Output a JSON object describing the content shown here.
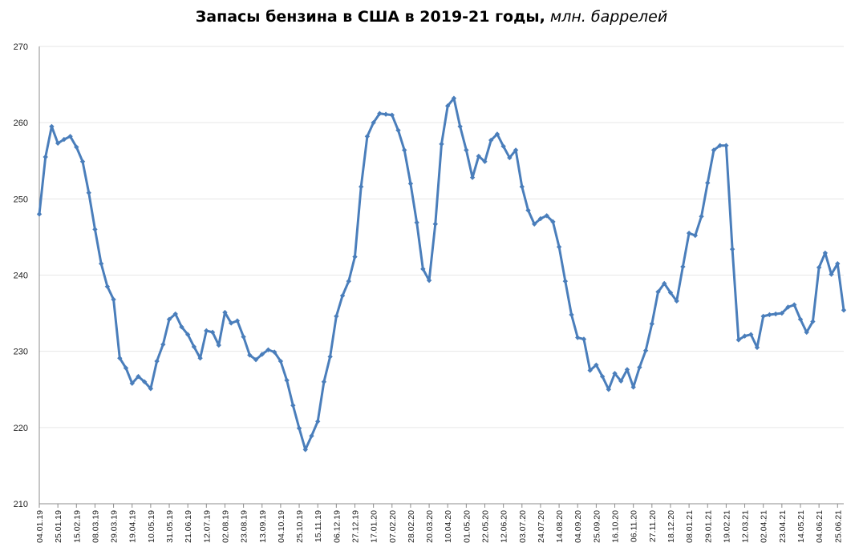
{
  "chart_data": {
    "type": "line",
    "title": "Запасы бензина в США в 2019-21 годы,",
    "title_unit": "млн. баррелей",
    "xlabel": "",
    "ylabel": "",
    "ylim": [
      210,
      270
    ],
    "yticks": [
      210,
      220,
      230,
      240,
      250,
      260,
      270
    ],
    "grid": true,
    "legend": "none",
    "line_color": "#4a7ebb",
    "x_tick_labels": [
      "04.01.19",
      "25.01.19",
      "15.02.19",
      "08.03.19",
      "29.03.19",
      "19.04.19",
      "10.05.19",
      "31.05.19",
      "21.06.19",
      "12.07.19",
      "02.08.19",
      "23.08.19",
      "13.09.19",
      "04.10.19",
      "25.10.19",
      "15.11.19",
      "06.12.19",
      "27.12.19",
      "17.01.20",
      "07.02.20",
      "28.02.20",
      "20.03.20",
      "10.04.20",
      "01.05.20",
      "22.05.20",
      "12.06.20",
      "03.07.20",
      "24.07.20",
      "14.08.20",
      "04.09.20",
      "25.09.20",
      "16.10.20",
      "06.11.20",
      "27.11.20",
      "18.12.20",
      "08.01.21",
      "29.01.21",
      "19.02.21",
      "12.03.21",
      "02.04.21",
      "23.04.21",
      "14.05.21",
      "04.06.21",
      "25.06.21"
    ],
    "series": [
      {
        "values": [
          248.0,
          255.5,
          259.5,
          257.3,
          257.8,
          258.2,
          256.8,
          254.9,
          250.8,
          246.0,
          241.5,
          238.5,
          236.8,
          229.1,
          227.8,
          225.8,
          226.7,
          226.0,
          225.1,
          228.7,
          230.9,
          234.2,
          234.9,
          233.2,
          232.2,
          230.6,
          229.1,
          232.7,
          232.5,
          230.8,
          235.1,
          233.7,
          234.0,
          231.9,
          229.5,
          228.9,
          229.6,
          230.2,
          229.9,
          228.7,
          226.2,
          222.9,
          219.9,
          217.1,
          218.9,
          220.8,
          226.0,
          229.3,
          234.6,
          237.3,
          239.2,
          242.4,
          251.6,
          258.2,
          260.0,
          261.2,
          261.1,
          261.0,
          259.0,
          256.4,
          252.0,
          246.9,
          240.8,
          239.3,
          246.7,
          257.2,
          262.2,
          263.2,
          259.5,
          256.4,
          252.8,
          255.6,
          254.9,
          257.7,
          258.5,
          256.9,
          255.4,
          256.4,
          251.6,
          248.5,
          246.7,
          247.4,
          247.8,
          247.0,
          243.7,
          239.2,
          234.8,
          231.8,
          231.6,
          227.5,
          228.2,
          226.7,
          225.0,
          227.1,
          226.1,
          227.6,
          225.3,
          227.9,
          230.1,
          233.6,
          237.8,
          238.9,
          237.7,
          236.6,
          241.1,
          245.5,
          245.2,
          247.7,
          252.1,
          256.4,
          257.0,
          257.0,
          243.4,
          231.5,
          232.0,
          232.2,
          230.5,
          234.6,
          234.8,
          234.9,
          235.0,
          235.8,
          236.1,
          234.2,
          232.5,
          233.9,
          241.0,
          242.9,
          240.1,
          241.5,
          235.4
        ]
      }
    ]
  }
}
